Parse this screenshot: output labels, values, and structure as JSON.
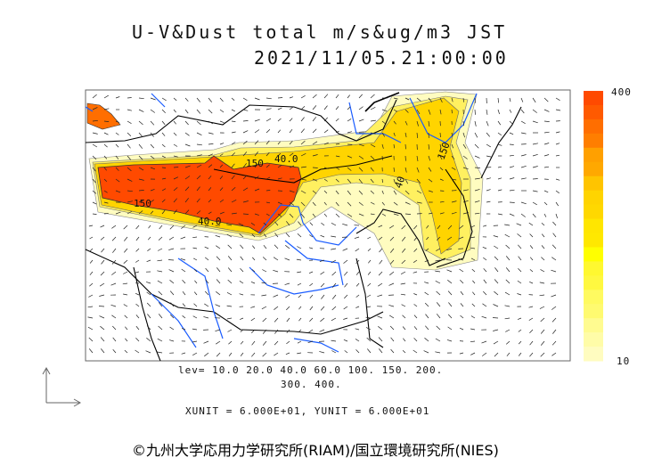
{
  "title": {
    "line1": "U-V&Dust total m/s&ug/m3 JST",
    "line2": "2021/11/05.21:00:00"
  },
  "colorbar": {
    "max_label": "400",
    "min_label": "10",
    "colors": [
      "#ff4a00",
      "#ff5a00",
      "#ff6e00",
      "#ff7e00",
      "#ffa000",
      "#ffa800",
      "#ffc400",
      "#ffd400",
      "#ffd800",
      "#ffe600",
      "#ffe800",
      "#ffff00",
      "#fff830",
      "#fff840",
      "#fffa60",
      "#fffa70",
      "#fffb90",
      "#fffca8",
      "#fffcc0"
    ]
  },
  "contour_labels": [
    "150",
    "40.0",
    "150",
    "40.0",
    "40",
    "150"
  ],
  "levels": {
    "line1": "lev= 10.0 20.0 40.0 60.0 100. 150. 200.",
    "line2": "300. 400."
  },
  "units": "XUNIT = 6.000E+01, YUNIT = 6.000E+01",
  "copyright": "©九州大学応用力学研究所(RIAM)/国立環境研究所(NIES)",
  "colors": {
    "river": "#1a5cff",
    "border": "#000000",
    "plume_high": "#ff4a00",
    "plume_mid": "#ffd400",
    "plume_low": "#fffcc0"
  }
}
